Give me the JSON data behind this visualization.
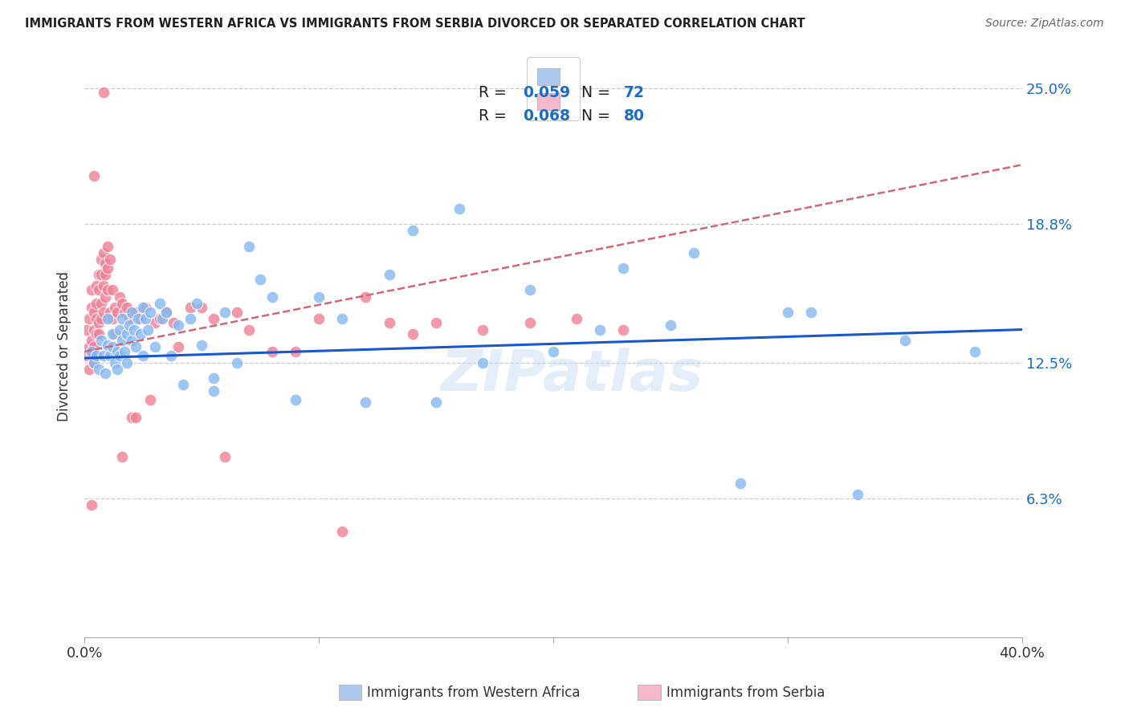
{
  "title": "IMMIGRANTS FROM WESTERN AFRICA VS IMMIGRANTS FROM SERBIA DIVORCED OR SEPARATED CORRELATION CHART",
  "source": "Source: ZipAtlas.com",
  "ylabel": "Divorced or Separated",
  "legend_1_label_R": "R = 0.059",
  "legend_1_label_N": "N = 72",
  "legend_2_label_R": "R = 0.068",
  "legend_2_label_N": "N = 80",
  "legend_1_color": "#adc8f0",
  "legend_2_color": "#f5b8ca",
  "scatter_blue_color": "#85b8f0",
  "scatter_pink_color": "#f08098",
  "line_blue_color": "#1a56cc",
  "line_pink_color": "#d06878",
  "watermark": "ZIPatlas",
  "xlim": [
    0.0,
    0.4
  ],
  "ylim": [
    0.0,
    0.265
  ],
  "ytick_vals": [
    0.063,
    0.125,
    0.188,
    0.25
  ],
  "ytick_labels": [
    "6.3%",
    "12.5%",
    "18.8%",
    "25.0%"
  ],
  "blue_line_x0": 0.0,
  "blue_line_x1": 0.4,
  "blue_line_y0": 0.127,
  "blue_line_y1": 0.14,
  "pink_line_x0": 0.0,
  "pink_line_x1": 0.4,
  "pink_line_y0": 0.13,
  "pink_line_y1": 0.215,
  "blue_scatter_x": [
    0.003,
    0.004,
    0.005,
    0.006,
    0.007,
    0.008,
    0.009,
    0.01,
    0.01,
    0.011,
    0.012,
    0.012,
    0.013,
    0.014,
    0.014,
    0.015,
    0.015,
    0.016,
    0.016,
    0.017,
    0.018,
    0.018,
    0.019,
    0.02,
    0.02,
    0.021,
    0.022,
    0.023,
    0.024,
    0.025,
    0.025,
    0.026,
    0.027,
    0.028,
    0.03,
    0.032,
    0.033,
    0.035,
    0.037,
    0.04,
    0.042,
    0.045,
    0.048,
    0.05,
    0.055,
    0.06,
    0.065,
    0.07,
    0.08,
    0.09,
    0.1,
    0.11,
    0.13,
    0.15,
    0.17,
    0.2,
    0.22,
    0.25,
    0.28,
    0.31,
    0.33,
    0.35,
    0.38,
    0.23,
    0.16,
    0.14,
    0.19,
    0.26,
    0.3,
    0.12,
    0.075,
    0.055
  ],
  "blue_scatter_y": [
    0.13,
    0.125,
    0.128,
    0.122,
    0.135,
    0.128,
    0.12,
    0.133,
    0.145,
    0.128,
    0.132,
    0.138,
    0.125,
    0.13,
    0.122,
    0.14,
    0.128,
    0.135,
    0.145,
    0.13,
    0.138,
    0.125,
    0.142,
    0.135,
    0.148,
    0.14,
    0.132,
    0.145,
    0.138,
    0.15,
    0.128,
    0.145,
    0.14,
    0.148,
    0.132,
    0.152,
    0.145,
    0.148,
    0.128,
    0.142,
    0.115,
    0.145,
    0.152,
    0.133,
    0.112,
    0.148,
    0.125,
    0.178,
    0.155,
    0.108,
    0.155,
    0.145,
    0.165,
    0.107,
    0.125,
    0.13,
    0.14,
    0.142,
    0.07,
    0.148,
    0.065,
    0.135,
    0.13,
    0.168,
    0.195,
    0.185,
    0.158,
    0.175,
    0.148,
    0.107,
    0.163,
    0.118
  ],
  "pink_scatter_x": [
    0.001,
    0.001,
    0.002,
    0.002,
    0.002,
    0.003,
    0.003,
    0.003,
    0.003,
    0.004,
    0.004,
    0.004,
    0.004,
    0.005,
    0.005,
    0.005,
    0.005,
    0.005,
    0.006,
    0.006,
    0.006,
    0.006,
    0.007,
    0.007,
    0.007,
    0.007,
    0.008,
    0.008,
    0.008,
    0.009,
    0.009,
    0.009,
    0.01,
    0.01,
    0.01,
    0.011,
    0.011,
    0.012,
    0.012,
    0.013,
    0.013,
    0.014,
    0.015,
    0.016,
    0.017,
    0.018,
    0.019,
    0.02,
    0.022,
    0.024,
    0.026,
    0.028,
    0.03,
    0.032,
    0.035,
    0.038,
    0.04,
    0.045,
    0.05,
    0.055,
    0.06,
    0.065,
    0.07,
    0.08,
    0.09,
    0.1,
    0.11,
    0.12,
    0.13,
    0.14,
    0.15,
    0.17,
    0.19,
    0.21,
    0.23,
    0.016,
    0.022,
    0.008,
    0.004,
    0.003
  ],
  "pink_scatter_y": [
    0.128,
    0.14,
    0.122,
    0.145,
    0.132,
    0.135,
    0.128,
    0.15,
    0.158,
    0.14,
    0.148,
    0.132,
    0.125,
    0.138,
    0.145,
    0.152,
    0.128,
    0.16,
    0.143,
    0.158,
    0.165,
    0.138,
    0.152,
    0.172,
    0.145,
    0.165,
    0.148,
    0.16,
    0.175,
    0.155,
    0.17,
    0.165,
    0.158,
    0.178,
    0.168,
    0.172,
    0.148,
    0.158,
    0.145,
    0.15,
    0.138,
    0.148,
    0.155,
    0.152,
    0.148,
    0.15,
    0.145,
    0.1,
    0.148,
    0.145,
    0.15,
    0.108,
    0.143,
    0.145,
    0.148,
    0.143,
    0.132,
    0.15,
    0.15,
    0.145,
    0.082,
    0.148,
    0.14,
    0.13,
    0.13,
    0.145,
    0.048,
    0.155,
    0.143,
    0.138,
    0.143,
    0.14,
    0.143,
    0.145,
    0.14,
    0.082,
    0.1,
    0.248,
    0.21,
    0.06
  ]
}
